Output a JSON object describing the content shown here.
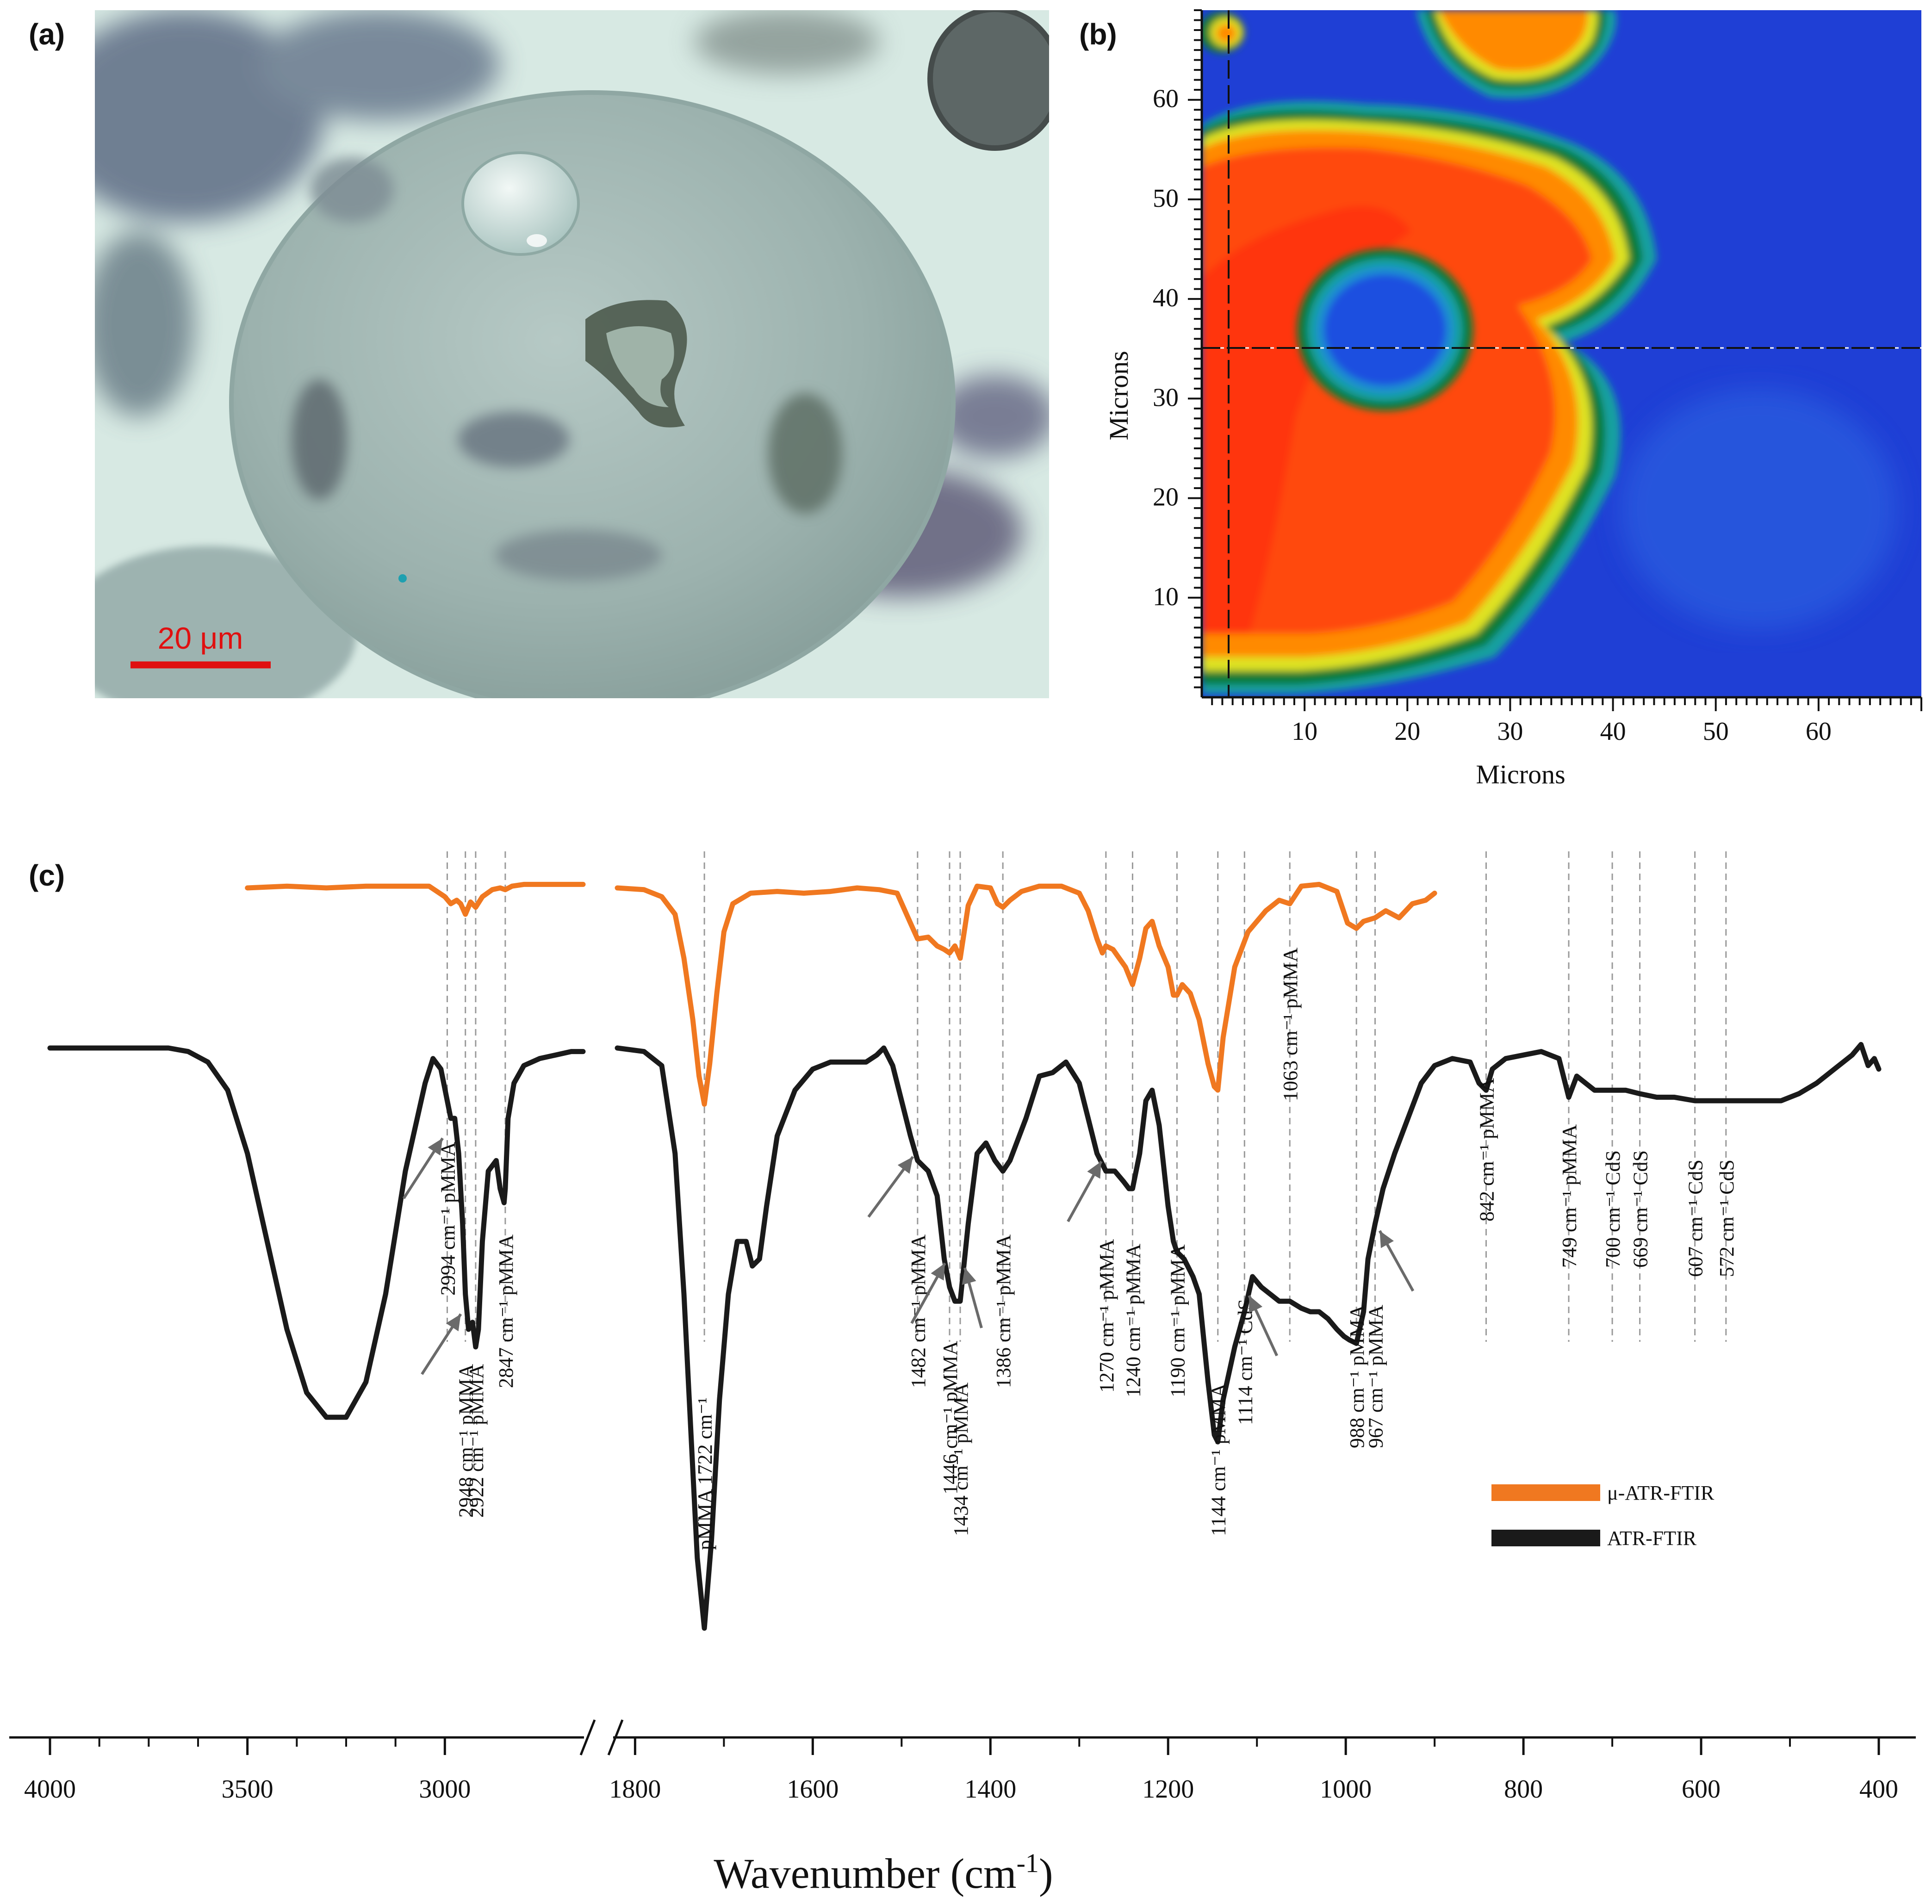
{
  "panels": {
    "a": {
      "letter": "(a)",
      "scale_bar_label": "20 μm",
      "colors": {
        "background": "#d8eae4",
        "particle": "#9fb6b3",
        "dark_stain": "#2d2d57",
        "scale_bar": "#e01010"
      }
    },
    "b": {
      "letter": "(b)",
      "xlabel": "Microns",
      "ylabel": "Microns",
      "xticks": [
        10,
        20,
        30,
        40,
        50,
        60
      ],
      "yticks": [
        10,
        20,
        30,
        40,
        50,
        60
      ],
      "xlim": [
        0,
        70
      ],
      "ylim": [
        0,
        69
      ],
      "crosshair": {
        "x": 2.5,
        "y": 35.5
      },
      "colormap": [
        "#1e3fd8",
        "#1a8fd0",
        "#22b6b0",
        "#0a7a2a",
        "#e0e020",
        "#ff8a00",
        "#ff3010"
      ]
    },
    "c": {
      "letter": "(c)",
      "xlabel": "Wavenumber (cm",
      "xlabel_sup": "-1",
      "xlabel_end": ")"
    }
  },
  "chart_data": {
    "type": "line",
    "xlabel": "Wavenumber (cm-1)",
    "x_axis_break": [
      2850,
      1820
    ],
    "xticks": [
      4000,
      3500,
      3000,
      1800,
      1600,
      1400,
      1200,
      1000,
      800,
      600,
      400
    ],
    "series": [
      {
        "name": "μ-ATR-FTIR",
        "color": "#f07820",
        "segments": [
          {
            "x": [
              3500,
              3400,
              3300,
              3200,
              3100,
              3040,
              3000,
              2985,
              2970,
              2960,
              2948,
              2935,
              2922,
              2905,
              2880,
              2860,
              2847,
              2830,
              2800,
              2760,
              2700,
              2650
            ],
            "y": [
              0.95,
              0.96,
              0.95,
              0.96,
              0.96,
              0.96,
              0.9,
              0.86,
              0.88,
              0.86,
              0.8,
              0.87,
              0.84,
              0.9,
              0.94,
              0.95,
              0.94,
              0.96,
              0.97,
              0.97,
              0.97,
              0.97
            ]
          },
          {
            "x": [
              1820,
              1790,
              1770,
              1755,
              1745,
              1735,
              1728,
              1722,
              1716,
              1708,
              1700,
              1690,
              1670,
              1640,
              1610,
              1580,
              1550,
              1525,
              1505,
              1490,
              1482,
              1470,
              1460,
              1452,
              1446,
              1440,
              1434,
              1425,
              1415,
              1400,
              1392,
              1386,
              1378,
              1365,
              1345,
              1320,
              1300,
              1290,
              1280,
              1274,
              1270,
              1262,
              1255,
              1248,
              1240,
              1232,
              1225,
              1218,
              1210,
              1200,
              1194,
              1190,
              1184,
              1175,
              1165,
              1155,
              1148,
              1144,
              1138,
              1125,
              1110,
              1090,
              1075,
              1063,
              1050,
              1030,
              1010,
              998,
              988,
              980,
              967,
              955,
              940,
              925,
              910,
              900
            ],
            "y": [
              0.95,
              0.94,
              0.9,
              0.8,
              0.55,
              0.2,
              -0.12,
              -0.28,
              -0.05,
              0.35,
              0.7,
              0.86,
              0.92,
              0.93,
              0.92,
              0.93,
              0.95,
              0.94,
              0.92,
              0.75,
              0.66,
              0.67,
              0.62,
              0.6,
              0.58,
              0.62,
              0.55,
              0.85,
              0.96,
              0.95,
              0.86,
              0.84,
              0.88,
              0.93,
              0.96,
              0.96,
              0.92,
              0.82,
              0.66,
              0.58,
              0.62,
              0.6,
              0.55,
              0.5,
              0.4,
              0.55,
              0.72,
              0.76,
              0.62,
              0.5,
              0.34,
              0.34,
              0.4,
              0.35,
              0.2,
              -0.05,
              -0.18,
              -0.2,
              0.1,
              0.5,
              0.7,
              0.82,
              0.88,
              0.86,
              0.96,
              0.97,
              0.93,
              0.75,
              0.72,
              0.76,
              0.78,
              0.82,
              0.78,
              0.86,
              0.88,
              0.92
            ]
          }
        ]
      },
      {
        "name": "ATR-FTIR",
        "color": "#1a1a1a",
        "segments": [
          {
            "x": [
              4000,
              3900,
              3800,
              3700,
              3650,
              3600,
              3550,
              3500,
              3450,
              3400,
              3350,
              3300,
              3250,
              3200,
              3150,
              3100,
              3050,
              3030,
              3010,
              2994,
              2985,
              2975,
              2965,
              2955,
              2948,
              2940,
              2930,
              2922,
              2915,
              2905,
              2890,
              2870,
              2860,
              2850,
              2847,
              2840,
              2825,
              2800,
              2760,
              2720,
              2680,
              2650
            ],
            "y": [
              0.5,
              0.5,
              0.5,
              0.5,
              0.49,
              0.46,
              0.38,
              0.2,
              -0.05,
              -0.3,
              -0.48,
              -0.55,
              -0.55,
              -0.45,
              -0.2,
              0.15,
              0.4,
              0.47,
              0.44,
              0.35,
              0.3,
              0.3,
              0.2,
              0.0,
              -0.2,
              -0.3,
              -0.28,
              -0.35,
              -0.3,
              -0.05,
              0.15,
              0.18,
              0.1,
              0.06,
              0.1,
              0.3,
              0.4,
              0.45,
              0.47,
              0.48,
              0.49,
              0.49
            ]
          },
          {
            "x": [
              1820,
              1790,
              1770,
              1755,
              1745,
              1737,
              1730,
              1722,
              1714,
              1705,
              1695,
              1685,
              1675,
              1668,
              1660,
              1652,
              1640,
              1620,
              1600,
              1580,
              1560,
              1540,
              1528,
              1520,
              1510,
              1500,
              1490,
              1482,
              1470,
              1460,
              1452,
              1446,
              1440,
              1434,
              1425,
              1415,
              1405,
              1395,
              1386,
              1378,
              1360,
              1345,
              1330,
              1315,
              1300,
              1290,
              1280,
              1270,
              1260,
              1250,
              1244,
              1240,
              1232,
              1225,
              1218,
              1210,
              1200,
              1194,
              1190,
              1182,
              1172,
              1165,
              1155,
              1148,
              1144,
              1138,
              1125,
              1114,
              1105,
              1095,
              1085,
              1075,
              1063,
              1050,
              1040,
              1030,
              1020,
              1010,
              1002,
              996,
              988,
              980,
              975,
              967,
              958,
              945,
              930,
              915,
              900,
              880,
              860,
              850,
              842,
              835,
              820,
              800,
              780,
              760,
              749,
              740,
              720,
              700,
              685,
              669,
              650,
              630,
              607,
              590,
              572,
              550,
              530,
              510,
              490,
              470,
              450,
              430,
              420,
              412,
              405,
              400
            ],
            "y": [
              0.5,
              0.49,
              0.45,
              0.2,
              -0.2,
              -0.6,
              -0.95,
              -1.15,
              -0.9,
              -0.5,
              -0.2,
              -0.05,
              -0.05,
              -0.12,
              -0.1,
              0.05,
              0.25,
              0.38,
              0.44,
              0.46,
              0.46,
              0.46,
              0.48,
              0.5,
              0.45,
              0.35,
              0.25,
              0.18,
              0.15,
              0.08,
              -0.1,
              -0.18,
              -0.22,
              -0.22,
              0.0,
              0.2,
              0.23,
              0.18,
              0.15,
              0.18,
              0.3,
              0.42,
              0.43,
              0.46,
              0.4,
              0.3,
              0.2,
              0.15,
              0.15,
              0.12,
              0.1,
              0.1,
              0.2,
              0.35,
              0.38,
              0.28,
              0.05,
              -0.05,
              -0.08,
              -0.1,
              -0.15,
              -0.2,
              -0.45,
              -0.6,
              -0.62,
              -0.5,
              -0.35,
              -0.25,
              -0.15,
              -0.18,
              -0.2,
              -0.22,
              -0.22,
              -0.24,
              -0.25,
              -0.25,
              -0.27,
              -0.3,
              -0.32,
              -0.33,
              -0.34,
              -0.25,
              -0.1,
              0.0,
              0.1,
              0.2,
              0.3,
              0.4,
              0.45,
              0.47,
              0.46,
              0.4,
              0.38,
              0.44,
              0.47,
              0.48,
              0.49,
              0.47,
              0.36,
              0.42,
              0.38,
              0.38,
              0.38,
              0.37,
              0.36,
              0.36,
              0.35,
              0.35,
              0.35,
              0.35,
              0.35,
              0.35,
              0.37,
              0.4,
              0.44,
              0.48,
              0.51,
              0.45,
              0.47,
              0.44
            ]
          }
        ]
      }
    ],
    "peak_annotations": [
      {
        "wavenumber": 2994,
        "label": "2994 cm⁻¹ pMMA"
      },
      {
        "wavenumber": 2948,
        "label": "2948 cm⁻¹ pMMA"
      },
      {
        "wavenumber": 2922,
        "label": "2922 cm⁻¹ pMMA"
      },
      {
        "wavenumber": 2847,
        "label": "2847 cm⁻¹ pMMA"
      },
      {
        "wavenumber": 1722,
        "label": "pMMA 1722 cm⁻¹"
      },
      {
        "wavenumber": 1482,
        "label": "1482 cm⁻¹ pMMA"
      },
      {
        "wavenumber": 1446,
        "label": "1446 cm⁻¹ pMMA"
      },
      {
        "wavenumber": 1434,
        "label": "1434 cm⁻¹ pMMA"
      },
      {
        "wavenumber": 1386,
        "label": "1386 cm⁻¹ pMMA"
      },
      {
        "wavenumber": 1270,
        "label": "1270 cm⁻¹ pMMA"
      },
      {
        "wavenumber": 1240,
        "label": "1240 cm⁻¹ pMMA"
      },
      {
        "wavenumber": 1190,
        "label": "1190 cm⁻¹ pMMA"
      },
      {
        "wavenumber": 1144,
        "label": "1144 cm⁻¹ pMMA"
      },
      {
        "wavenumber": 1114,
        "label": "1114 cm⁻¹ CdS"
      },
      {
        "wavenumber": 1063,
        "label": "1063 cm⁻¹ pMMA"
      },
      {
        "wavenumber": 988,
        "label": "988 cm⁻¹ pMMA"
      },
      {
        "wavenumber": 967,
        "label": "967 cm⁻¹ pMMA"
      },
      {
        "wavenumber": 842,
        "label": "842 cm⁻¹ pMMA"
      },
      {
        "wavenumber": 749,
        "label": "749 cm⁻¹ pMMA"
      },
      {
        "wavenumber": 700,
        "label": "700 cm⁻¹ CdS"
      },
      {
        "wavenumber": 669,
        "label": "669 cm⁻¹ CdS"
      },
      {
        "wavenumber": 607,
        "label": "607 cm⁻¹ CdS"
      },
      {
        "wavenumber": 572,
        "label": "572 cm⁻¹ CdS"
      }
    ],
    "legend": [
      {
        "label": "μ-ATR-FTIR",
        "color": "#f07820"
      },
      {
        "label": "ATR-FTIR",
        "color": "#1a1a1a"
      }
    ],
    "legend_position": "lower-right"
  }
}
